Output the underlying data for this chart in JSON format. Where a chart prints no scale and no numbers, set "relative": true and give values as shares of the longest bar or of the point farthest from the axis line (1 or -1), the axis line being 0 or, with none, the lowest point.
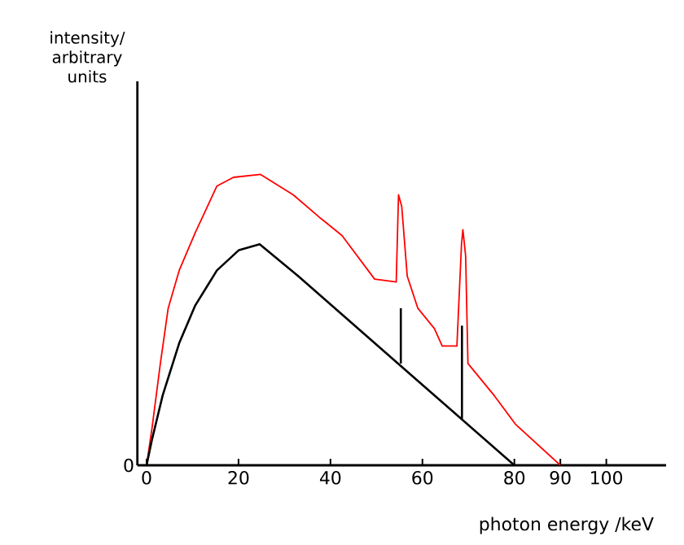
{
  "chart_data": {
    "type": "line",
    "relative": true,
    "xlabel": "photon energy /keV",
    "x": [
      0,
      1.2,
      3,
      4.7,
      7.1,
      10.6,
      15.3,
      18.9,
      24.8,
      31.9,
      37.8,
      42.5,
      49.6,
      54.3,
      54.8,
      55.5,
      56.7,
      59,
      62.6,
      64.3,
      67.5,
      68.5,
      68.8,
      69.4,
      69.9,
      75.6,
      80.3,
      90
    ],
    "xlim": [
      -2,
      113
    ],
    "xticks": [
      0,
      20,
      40,
      60,
      80,
      90,
      100
    ],
    "annotations": [
      "0",
      "intensity/ arbitrary units"
    ],
    "grid": false,
    "marker": "none",
    "line_style": "solid",
    "series": [
      {
        "color": "#ff0000",
        "values": [
          0,
          0.13,
          0.35,
          0.54,
          0.67,
          0.8,
          0.96,
          0.99,
          1.0,
          0.93,
          0.85,
          0.79,
          0.64,
          0.63,
          0.93,
          0.89,
          0.65,
          0.54,
          0.47,
          0.41,
          0.41,
          0.76,
          0.81,
          0.72,
          0.35,
          0.24,
          0.14,
          0
        ]
      },
      {
        "color": "#000000",
        "x": [
          0,
          1.2,
          3.5,
          7.1,
          10.6,
          15.3,
          20.1,
          24.6,
          33,
          80
        ],
        "values": [
          0,
          0.09,
          0.24,
          0.42,
          0.55,
          0.67,
          0.74,
          0.76,
          0.65,
          0
        ]
      },
      {
        "color": "#000000",
        "x": [
          55.3,
          55.3
        ],
        "values": [
          0.35,
          0.54
        ]
      },
      {
        "color": "#000000",
        "x": [
          68.6,
          68.6
        ],
        "values": [
          0.16,
          0.48
        ]
      }
    ]
  }
}
